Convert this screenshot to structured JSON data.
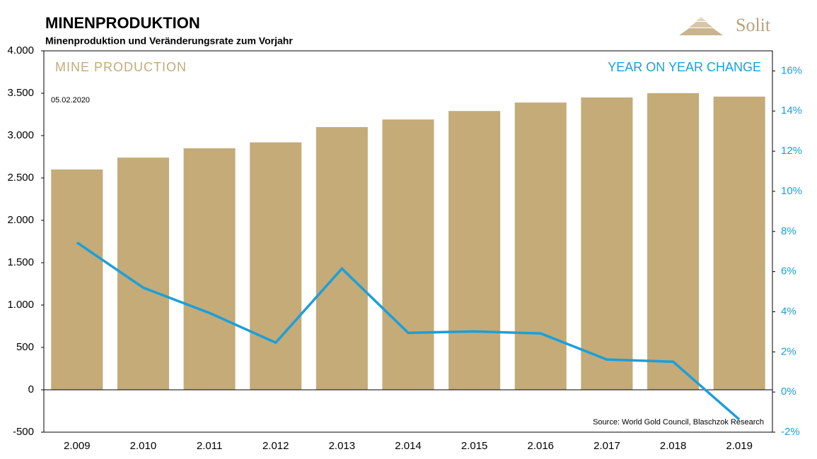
{
  "chart_data": {
    "type": "bar_line",
    "title": "MINENPRODUKTION",
    "subtitle": "Minenproduktion und Veränderungsrate zum Vorjahr",
    "brand": "Solit",
    "annotations": {
      "left_label": "MINE PRODUCTION",
      "right_label": "YEAR ON YEAR CHANGE",
      "date": "05.02.2020",
      "source": "Source: World Gold Council, Blaschzok Research"
    },
    "categories": [
      "2.009",
      "2.010",
      "2.011",
      "2.012",
      "2.013",
      "2.014",
      "2.015",
      "2.016",
      "2.017",
      "2.018",
      "2.019"
    ],
    "series": [
      {
        "name": "MINE PRODUCTION",
        "color": "#c4ab78",
        "values": [
          2600,
          2740,
          2850,
          2920,
          3100,
          3190,
          3290,
          3390,
          3450,
          3500,
          3460
        ]
      },
      {
        "name": "YEAR ON YEAR CHANGE",
        "color": "#1b9fd9",
        "axis": "y2",
        "values": [
          7.45,
          5.2,
          3.94,
          2.46,
          6.15,
          2.95,
          3.02,
          2.92,
          1.62,
          1.51,
          -1.37
        ]
      }
    ],
    "ylim": [
      -500,
      4000
    ],
    "yticks": [
      -500,
      0,
      500,
      {
        "value": 1000,
        "label": "1.000"
      },
      {
        "value": 1500,
        "label": "1.500"
      },
      {
        "value": 2000,
        "label": "2.000"
      },
      {
        "value": 2500,
        "label": "2.500"
      },
      {
        "value": 3000,
        "label": "3.000"
      },
      {
        "value": 3500,
        "label": "3.500"
      },
      {
        "value": 4000,
        "label": "4.000"
      }
    ],
    "y2lim": [
      -2,
      17
    ],
    "y2ticks": [
      {
        "value": -2,
        "label": "-2%"
      },
      {
        "value": 0,
        "label": "0%"
      },
      {
        "value": 2,
        "label": "2%"
      },
      {
        "value": 4,
        "label": "4%"
      },
      {
        "value": 6,
        "label": "6%"
      },
      {
        "value": 8,
        "label": "8%"
      },
      {
        "value": 10,
        "label": "10%"
      },
      {
        "value": 12,
        "label": "12%"
      },
      {
        "value": 14,
        "label": "14%"
      },
      {
        "value": 16,
        "label": "16%"
      }
    ]
  }
}
